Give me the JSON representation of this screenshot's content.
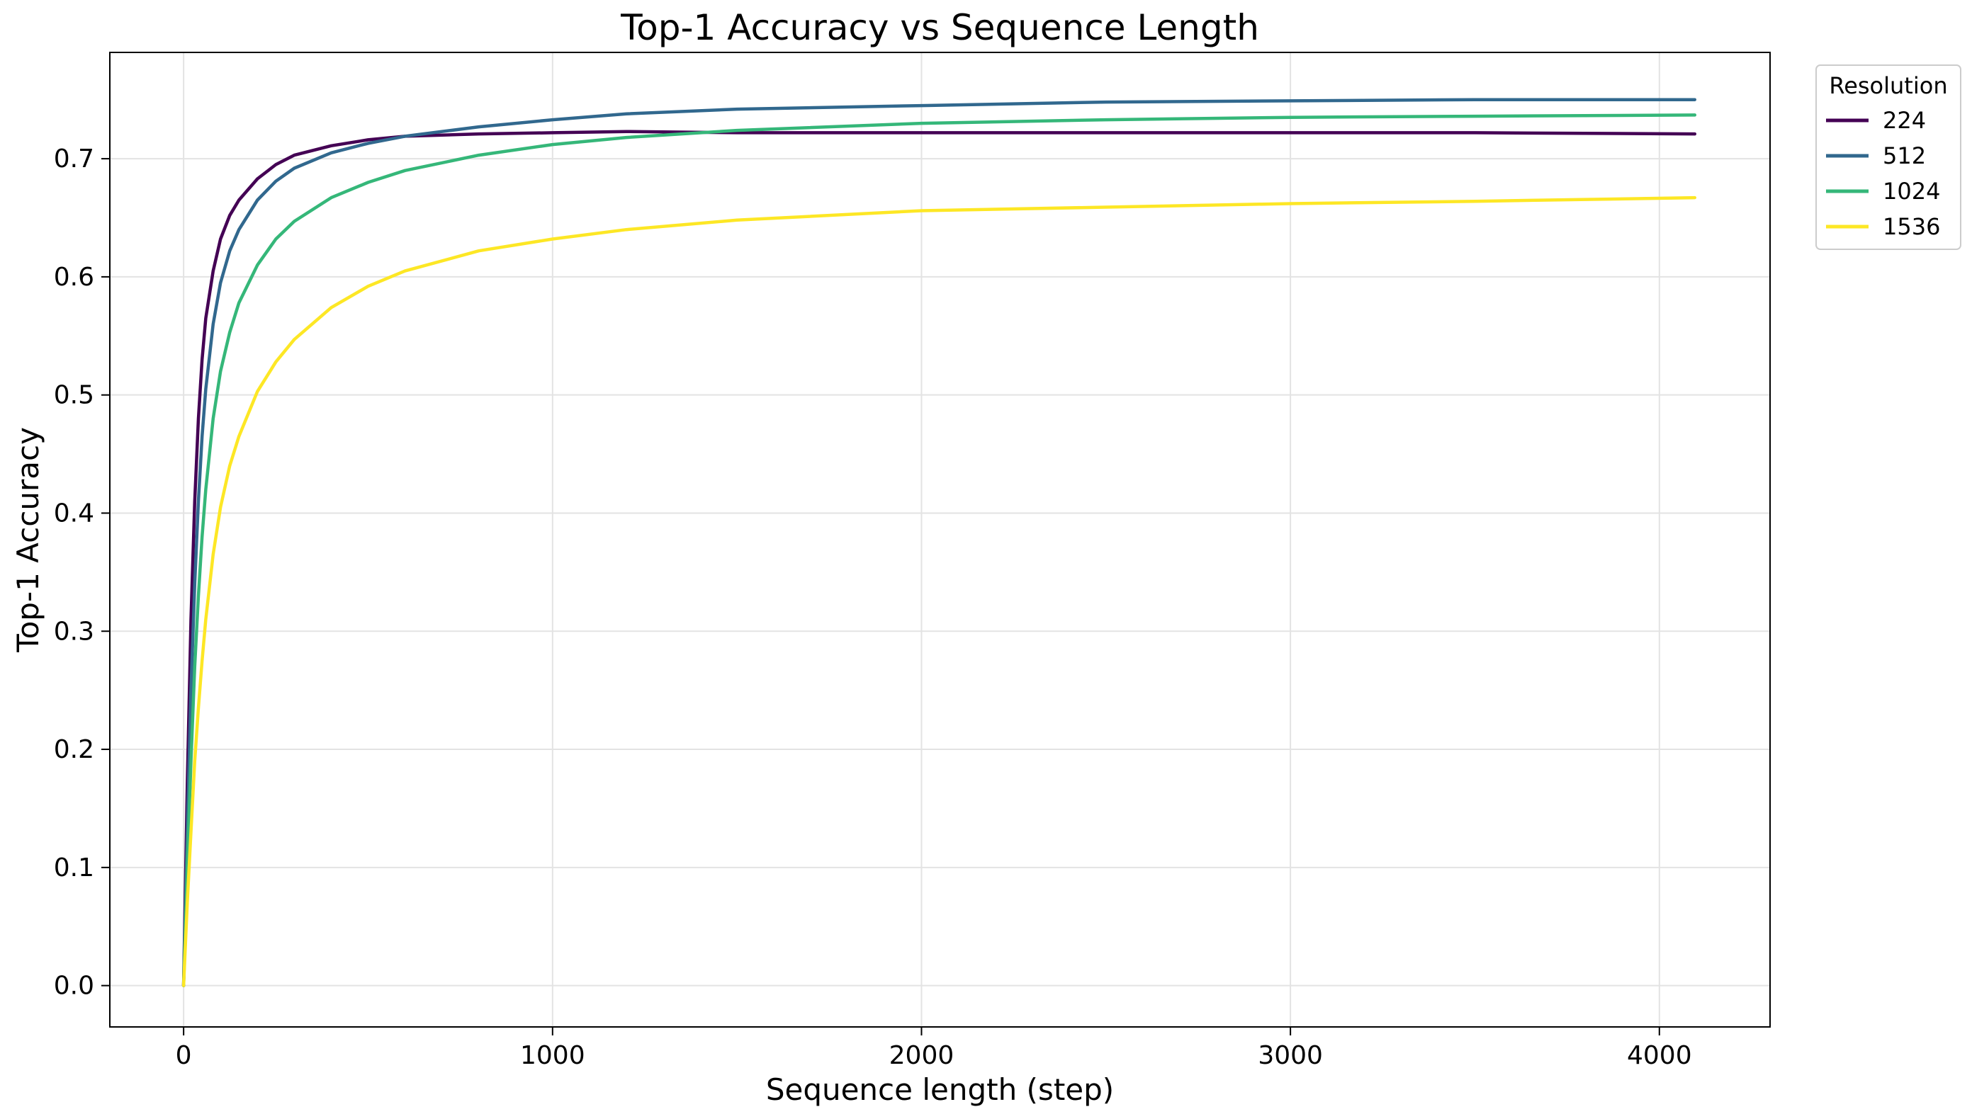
{
  "chart_data": {
    "type": "line",
    "title": "Top-1 Accuracy vs Sequence Length",
    "xlabel": "Sequence length (step)",
    "ylabel": "Top-1 Accuracy",
    "xlim": [
      -200,
      4300
    ],
    "ylim": [
      -0.035,
      0.79
    ],
    "xticks": [
      0,
      1000,
      2000,
      3000,
      4000
    ],
    "xtick_labels": [
      "0",
      "1000",
      "2000",
      "3000",
      "4000"
    ],
    "yticks": [
      0.0,
      0.1,
      0.2,
      0.3,
      0.4,
      0.5,
      0.6,
      0.7
    ],
    "ytick_labels": [
      "0.0",
      "0.1",
      "0.2",
      "0.3",
      "0.4",
      "0.5",
      "0.6",
      "0.7"
    ],
    "grid": true,
    "legend": {
      "title": "Resolution",
      "placement": "outside-top-right"
    },
    "series": [
      {
        "name": "224",
        "color": "#440154",
        "x": [
          0,
          10,
          20,
          30,
          40,
          50,
          60,
          80,
          100,
          125,
          150,
          200,
          250,
          300,
          400,
          500,
          600,
          800,
          1000,
          1200,
          1500,
          2000,
          2500,
          3000,
          3500,
          4096
        ],
        "y": [
          0.0,
          0.17,
          0.31,
          0.41,
          0.48,
          0.53,
          0.565,
          0.605,
          0.632,
          0.652,
          0.665,
          0.683,
          0.695,
          0.703,
          0.711,
          0.716,
          0.719,
          0.721,
          0.722,
          0.723,
          0.722,
          0.722,
          0.722,
          0.722,
          0.722,
          0.721
        ]
      },
      {
        "name": "512",
        "color": "#31688e",
        "x": [
          0,
          10,
          20,
          30,
          40,
          50,
          60,
          80,
          100,
          125,
          150,
          200,
          250,
          300,
          400,
          500,
          600,
          800,
          1000,
          1200,
          1500,
          2000,
          2500,
          3000,
          3500,
          4096
        ],
        "y": [
          0.0,
          0.13,
          0.25,
          0.34,
          0.41,
          0.465,
          0.505,
          0.56,
          0.595,
          0.622,
          0.64,
          0.665,
          0.681,
          0.692,
          0.705,
          0.713,
          0.719,
          0.727,
          0.733,
          0.738,
          0.742,
          0.745,
          0.748,
          0.749,
          0.75,
          0.75
        ]
      },
      {
        "name": "1024",
        "color": "#35b779",
        "x": [
          0,
          10,
          20,
          30,
          40,
          50,
          60,
          80,
          100,
          125,
          150,
          200,
          250,
          300,
          400,
          500,
          600,
          800,
          1000,
          1200,
          1500,
          2000,
          2500,
          3000,
          3500,
          4096
        ],
        "y": [
          0.0,
          0.1,
          0.19,
          0.27,
          0.33,
          0.38,
          0.42,
          0.48,
          0.52,
          0.553,
          0.578,
          0.61,
          0.632,
          0.647,
          0.667,
          0.68,
          0.69,
          0.703,
          0.712,
          0.718,
          0.724,
          0.73,
          0.733,
          0.735,
          0.736,
          0.737
        ]
      },
      {
        "name": "1536",
        "color": "#fde725",
        "x": [
          0,
          10,
          20,
          30,
          40,
          50,
          60,
          80,
          100,
          125,
          150,
          200,
          250,
          300,
          400,
          500,
          600,
          800,
          1000,
          1200,
          1500,
          2000,
          2500,
          3000,
          3500,
          4096
        ],
        "y": [
          0.0,
          0.07,
          0.13,
          0.19,
          0.235,
          0.275,
          0.31,
          0.365,
          0.405,
          0.44,
          0.465,
          0.503,
          0.528,
          0.547,
          0.574,
          0.592,
          0.605,
          0.622,
          0.632,
          0.64,
          0.648,
          0.656,
          0.659,
          0.662,
          0.664,
          0.667
        ]
      }
    ]
  }
}
